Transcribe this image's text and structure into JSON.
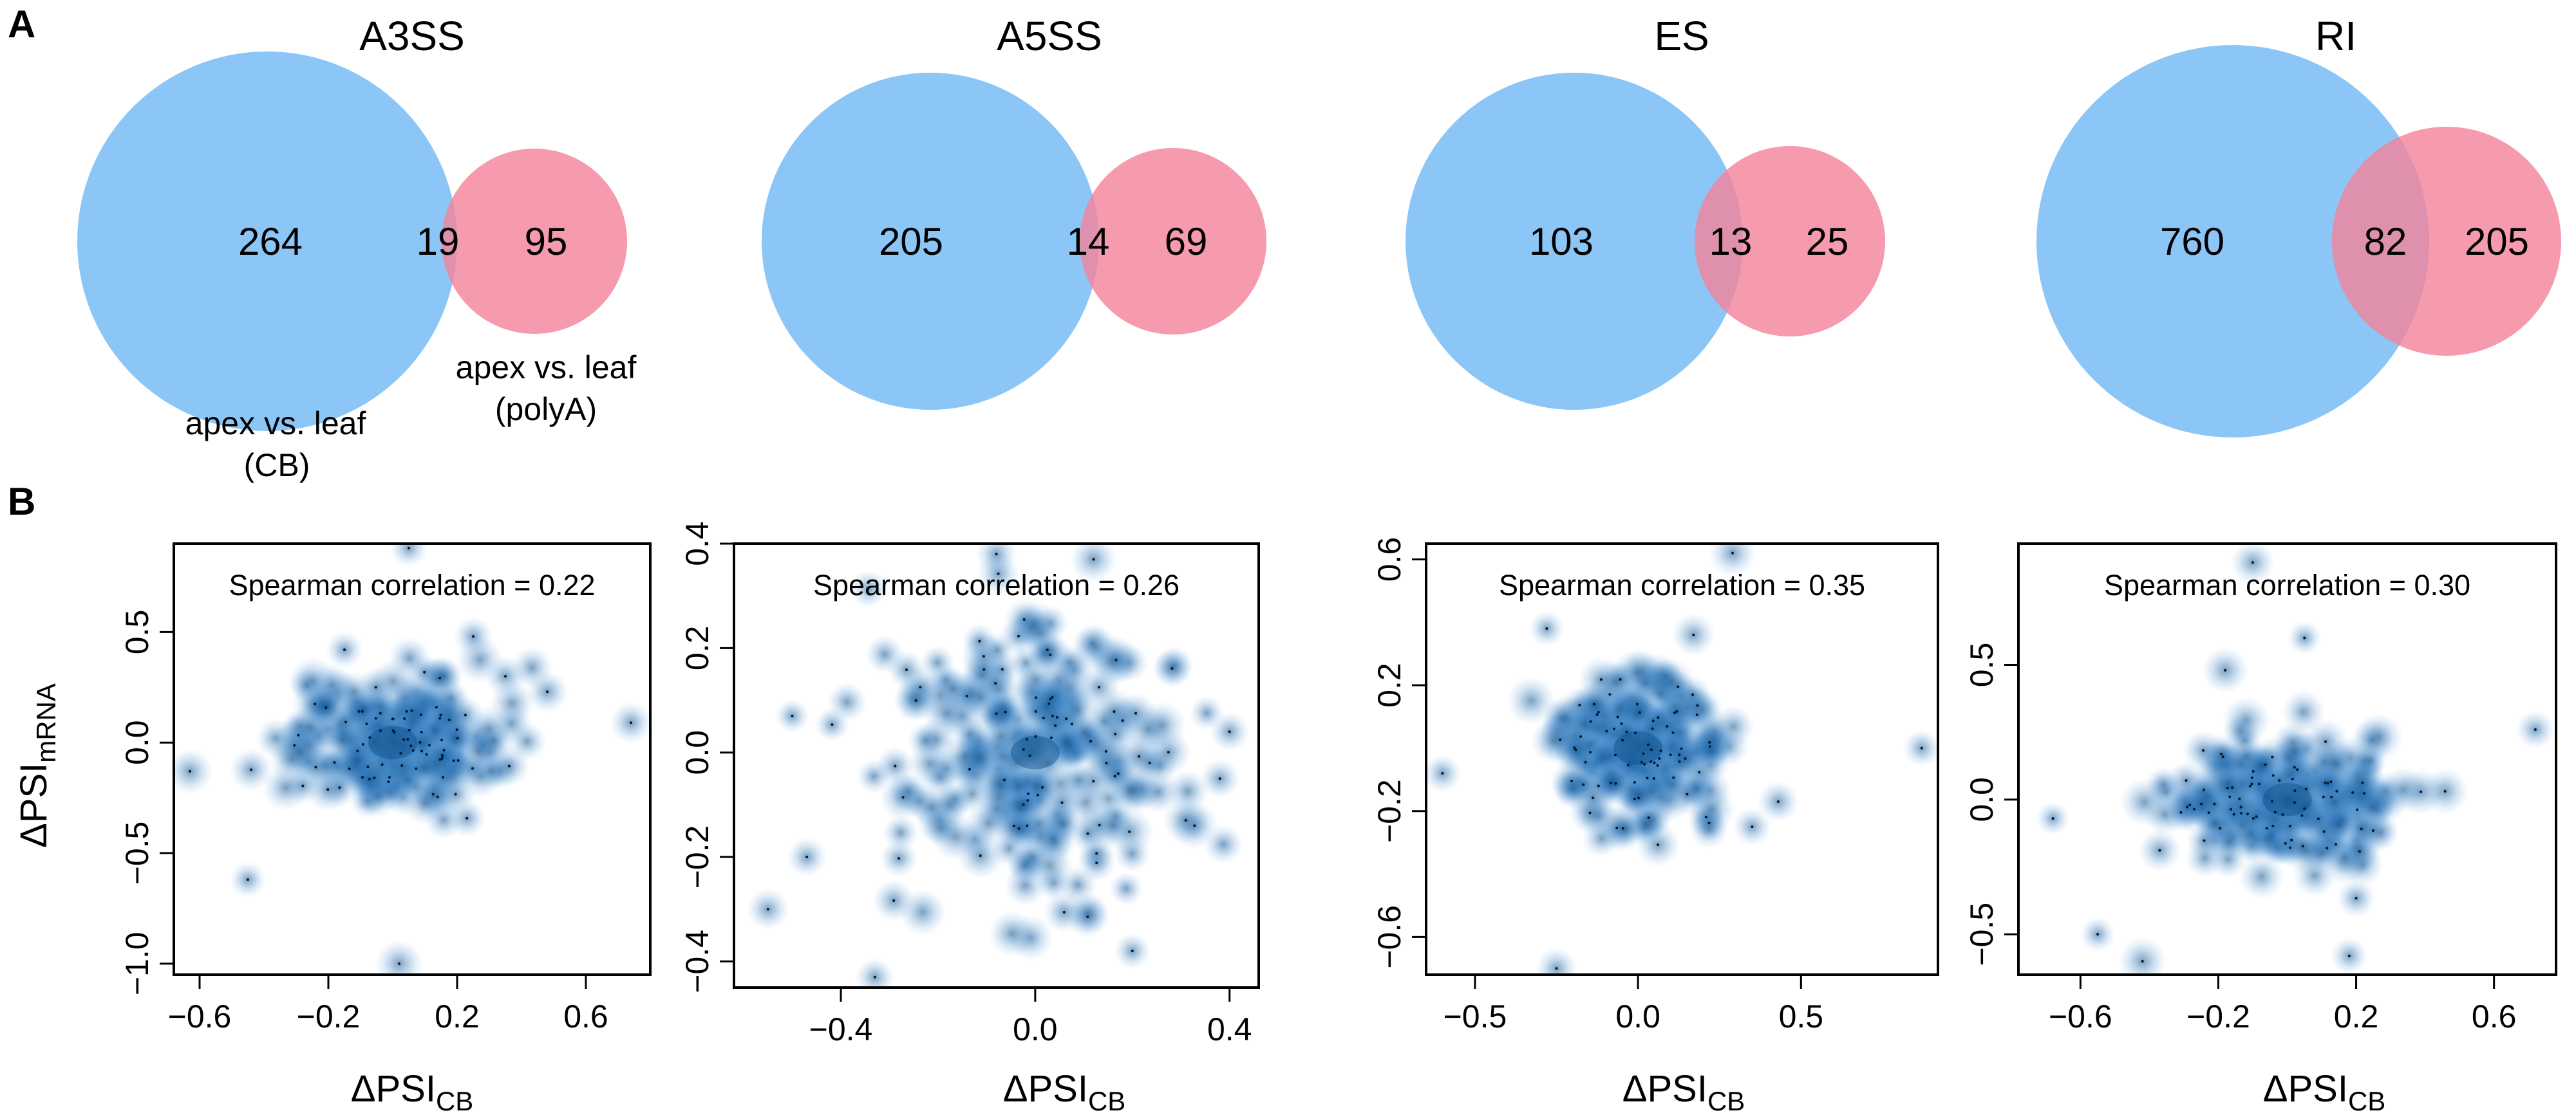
{
  "panel_labels": {
    "a": "A",
    "b": "B"
  },
  "colors": {
    "venn_left": "#7ec0f5",
    "venn_right": "#f4829a",
    "venn_overlap": "#b8b0d4",
    "density": "#0b4f8a"
  },
  "text": {
    "delta": "ΔPSI",
    "mrna_sub": "mRNA",
    "cb_sub": "CB"
  },
  "venn_legend": {
    "left_line1": "apex vs. leaf",
    "left_line2": "(CB)",
    "right_line1": "apex vs. leaf",
    "right_line2": "(polyA)"
  },
  "chart_data": [
    {
      "type": "venn",
      "title": "A3SS",
      "left_only": 264,
      "overlap": 19,
      "right_only": 95,
      "sets": [
        "apex vs. leaf (CB)",
        "apex vs. leaf (polyA)"
      ]
    },
    {
      "type": "venn",
      "title": "A5SS",
      "left_only": 205,
      "overlap": 14,
      "right_only": 69,
      "sets": [
        "apex vs. leaf (CB)",
        "apex vs. leaf (polyA)"
      ]
    },
    {
      "type": "venn",
      "title": "ES",
      "left_only": 103,
      "overlap": 13,
      "right_only": 25,
      "sets": [
        "apex vs. leaf (CB)",
        "apex vs. leaf (polyA)"
      ]
    },
    {
      "type": "venn",
      "title": "RI",
      "left_only": 760,
      "overlap": 82,
      "right_only": 205,
      "sets": [
        "apex vs. leaf (CB)",
        "apex vs. leaf (polyA)"
      ]
    },
    {
      "type": "scatter",
      "subtitle": "Spearman correlation = 0.22",
      "xlim": [
        -0.68,
        0.8
      ],
      "ylim": [
        -1.05,
        0.9
      ],
      "xticks": [
        -0.6,
        -0.2,
        0.2,
        0.6
      ],
      "xtick_labels": [
        "−0.6",
        "−0.2",
        "0.2",
        "0.6"
      ],
      "yticks": [
        -1.0,
        -0.5,
        0.0,
        0.5
      ],
      "ytick_labels": [
        "−1.0",
        "−0.5",
        "0.0",
        "0.5"
      ],
      "center": [
        0.0,
        0.0
      ],
      "spread": [
        0.16,
        0.14
      ],
      "outliers": [
        [
          -0.63,
          -0.13
        ],
        [
          -0.45,
          -0.62
        ],
        [
          0.02,
          -1.0
        ],
        [
          0.74,
          0.09
        ],
        [
          0.48,
          0.23
        ],
        [
          0.35,
          0.3
        ],
        [
          0.05,
          0.88
        ],
        [
          -0.15,
          0.42
        ],
        [
          0.25,
          0.48
        ]
      ]
    },
    {
      "type": "scatter",
      "subtitle": "Spearman correlation = 0.26",
      "xlim": [
        -0.62,
        0.46
      ],
      "ylim": [
        -0.45,
        0.4
      ],
      "xticks": [
        -0.4,
        0.0,
        0.4
      ],
      "xtick_labels": [
        "−0.4",
        "0.0",
        "0.4"
      ],
      "yticks": [
        -0.4,
        -0.2,
        0.0,
        0.2,
        0.4
      ],
      "ytick_labels": [
        "−0.4",
        "−0.2",
        "0.0",
        "0.2",
        "0.4"
      ],
      "center": [
        0.0,
        0.0
      ],
      "spread": [
        0.14,
        0.13
      ],
      "outliers": [
        [
          -0.55,
          -0.3
        ],
        [
          -0.33,
          -0.43
        ],
        [
          0.38,
          -0.05
        ],
        [
          0.4,
          0.04
        ],
        [
          -0.5,
          0.07
        ],
        [
          -0.47,
          -0.2
        ],
        [
          0.2,
          -0.38
        ],
        [
          -0.08,
          0.38
        ],
        [
          0.12,
          0.37
        ]
      ]
    },
    {
      "type": "scatter",
      "subtitle": "Spearman correlation = 0.35",
      "xlim": [
        -0.65,
        0.92
      ],
      "ylim": [
        -0.72,
        0.65
      ],
      "xticks": [
        -0.5,
        0.0,
        0.5
      ],
      "xtick_labels": [
        "−0.5",
        "0.0",
        "0.5"
      ],
      "yticks": [
        -0.6,
        -0.2,
        0.2,
        0.6
      ],
      "ytick_labels": [
        "−0.6",
        "−0.2",
        "0.2",
        "0.6"
      ],
      "center": [
        0.0,
        0.0
      ],
      "spread": [
        0.12,
        0.12
      ],
      "outliers": [
        [
          -0.6,
          -0.08
        ],
        [
          -0.25,
          -0.7
        ],
        [
          0.29,
          0.62
        ],
        [
          0.87,
          0.0
        ],
        [
          0.43,
          -0.17
        ],
        [
          0.35,
          -0.25
        ],
        [
          -0.28,
          0.38
        ],
        [
          0.17,
          0.36
        ]
      ]
    },
    {
      "type": "scatter",
      "subtitle": "Spearman correlation = 0.30",
      "xlim": [
        -0.78,
        0.78
      ],
      "ylim": [
        -0.65,
        0.95
      ],
      "xticks": [
        -0.6,
        -0.2,
        0.2,
        0.6
      ],
      "xtick_labels": [
        "−0.6",
        "−0.2",
        "0.2",
        "0.6"
      ],
      "yticks": [
        -0.5,
        0.0,
        0.5
      ],
      "ytick_labels": [
        "−0.5",
        "0.0",
        "0.5"
      ],
      "center": [
        0.0,
        0.0
      ],
      "spread": [
        0.17,
        0.12
      ],
      "outliers": [
        [
          -0.68,
          -0.07
        ],
        [
          -0.1,
          0.88
        ],
        [
          0.72,
          0.26
        ],
        [
          -0.55,
          -0.5
        ],
        [
          -0.42,
          -0.6
        ],
        [
          0.18,
          -0.58
        ],
        [
          0.05,
          0.6
        ],
        [
          -0.18,
          0.48
        ]
      ]
    }
  ]
}
